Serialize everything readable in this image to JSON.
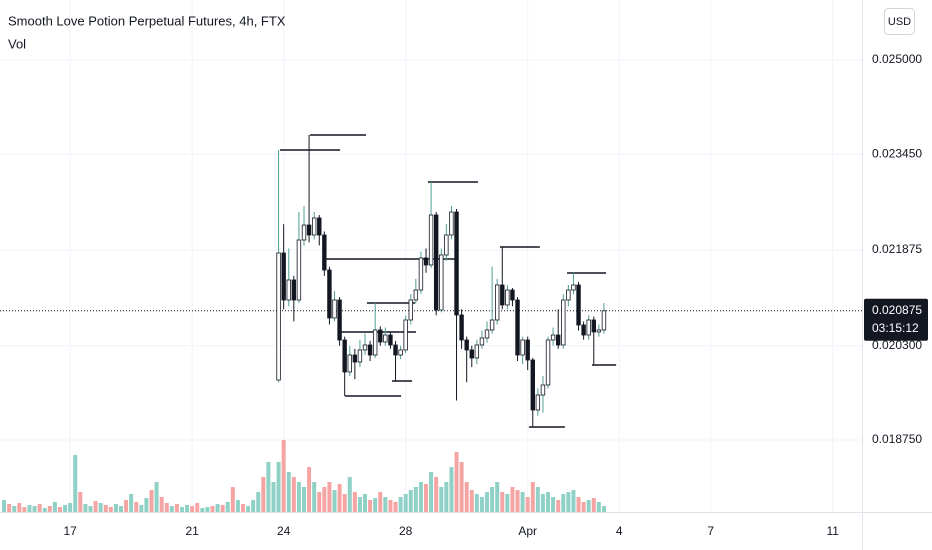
{
  "chart_data": {
    "type": "candlestick",
    "title": "Smooth Love Potion Perpetual Futures, 4h, FTX",
    "volume_label": "Vol",
    "currency": "USD",
    "current_price": 0.020875,
    "countdown": "03:15:12",
    "xlim": [
      14.7,
      42.96
    ],
    "ylim": [
      0.017566,
      0.025987
    ],
    "xticks": [
      17,
      21,
      24,
      28,
      {
        "value": 32,
        "label": "Apr"
      },
      {
        "value": 35,
        "label": "4"
      },
      {
        "value": 38,
        "label": "7"
      },
      {
        "value": 42,
        "label": "11"
      }
    ],
    "yticks": [
      {
        "value": 0.025,
        "label": "0.025000"
      },
      {
        "value": 0.02345,
        "label": "0.023450"
      },
      0.021875,
      {
        "value": 0.0203,
        "label": "0.020300"
      },
      {
        "value": 0.01875,
        "label": "0.018750"
      }
    ],
    "grid": true,
    "up_color": "#4f9e92",
    "down_color": "#131722",
    "x": [
      14.833,
      15,
      15.167,
      15.333,
      15.5,
      15.667,
      15.833,
      16,
      16.167,
      16.333,
      16.5,
      16.667,
      16.833,
      17,
      17.167,
      17.333,
      17.5,
      17.667,
      17.833,
      18,
      18.167,
      18.333,
      18.5,
      18.667,
      18.833,
      19,
      19.167,
      19.333,
      19.5,
      19.667,
      19.833,
      20,
      20.167,
      20.333,
      20.5,
      20.667,
      20.833,
      21,
      21.167,
      21.333,
      21.5,
      21.667,
      21.833,
      22,
      22.167,
      22.333,
      22.5,
      22.667,
      22.833,
      23,
      23.167,
      23.333,
      23.5,
      23.667,
      23.833,
      24,
      24.167,
      24.333,
      24.5,
      24.667,
      24.833,
      25,
      25.167,
      25.333,
      25.5,
      25.667,
      25.833,
      26,
      26.167,
      26.333,
      26.5,
      26.667,
      26.833,
      27,
      27.167,
      27.333,
      27.5,
      27.667,
      27.833,
      28,
      28.167,
      28.333,
      28.5,
      28.667,
      28.833,
      29,
      29.167,
      29.333,
      29.5,
      29.667,
      29.833,
      30,
      30.167,
      30.333,
      30.5,
      30.667,
      30.833,
      31,
      31.167,
      31.333,
      31.5,
      31.667,
      31.833,
      32,
      32.167,
      32.333,
      32.5,
      32.667,
      32.833,
      33,
      33.167,
      33.333,
      33.5,
      33.667,
      33.833,
      34,
      34.167,
      34.333,
      34.5
    ],
    "open": [
      null,
      null,
      null,
      null,
      null,
      null,
      null,
      null,
      null,
      null,
      null,
      null,
      null,
      null,
      null,
      null,
      null,
      null,
      null,
      null,
      null,
      null,
      null,
      null,
      null,
      null,
      null,
      null,
      null,
      null,
      null,
      null,
      null,
      null,
      null,
      null,
      null,
      null,
      null,
      null,
      null,
      null,
      null,
      null,
      null,
      null,
      null,
      null,
      null,
      null,
      null,
      null,
      null,
      null,
      0.019737,
      0.021826,
      0.021053,
      0.021382,
      0.021053,
      0.02204,
      0.022286,
      0.022122,
      0.022402,
      0.022122,
      0.021546,
      0.020757,
      0.021053,
      0.020395,
      0.019869,
      0.020148,
      0.020033,
      0.020231,
      0.020313,
      0.020148,
      0.02056,
      0.020362,
      0.020477,
      0.020313,
      0.020148,
      0.020231,
      0.020724,
      0.021053,
      0.021217,
      0.021744,
      0.021629,
      0.022451,
      0.020888,
      0.021793,
      0.022122,
      0.0225,
      0.020806,
      0.020395,
      0.020231,
      0.020099,
      0.020313,
      0.020428,
      0.02056,
      0.020724,
      0.0213,
      0.020971,
      0.021217,
      0.021053,
      0.020148,
      0.020395,
      0.020066,
      0.019244,
      0.01949,
      0.019655,
      0.020395,
      0.020477,
      0.020313,
      0.021053,
      0.021217,
      0.0213,
      0.020642,
      0.020477,
      0.020724,
      0.020527,
      0.02056
    ],
    "high": [
      null,
      null,
      null,
      null,
      null,
      null,
      null,
      null,
      null,
      null,
      null,
      null,
      null,
      null,
      null,
      null,
      null,
      null,
      null,
      null,
      null,
      null,
      null,
      null,
      null,
      null,
      null,
      null,
      null,
      null,
      null,
      null,
      null,
      null,
      null,
      null,
      null,
      null,
      null,
      null,
      null,
      null,
      null,
      null,
      null,
      null,
      null,
      null,
      null,
      null,
      null,
      null,
      null,
      null,
      0.02352,
      0.0223,
      0.0219,
      0.02145,
      0.0225,
      0.0226,
      0.023767,
      0.0225,
      0.02245,
      0.02218,
      0.0216,
      0.0212,
      0.0211,
      0.02045,
      0.0203,
      0.02025,
      0.0204,
      0.0205,
      0.02038,
      0.021003,
      0.02062,
      0.0206,
      0.02053,
      0.02038,
      0.0203,
      0.0208,
      0.02115,
      0.0214,
      0.02185,
      0.0219,
      0.022994,
      0.0225,
      0.0219,
      0.0223,
      0.0226,
      0.02255,
      0.0209,
      0.02045,
      0.0203,
      0.0204,
      0.02055,
      0.0207,
      0.0216,
      0.0214,
      0.021925,
      0.0213,
      0.02125,
      0.0211,
      0.02045,
      0.02045,
      0.0201,
      0.0196,
      0.0198,
      0.02045,
      0.0206,
      0.0209,
      0.02115,
      0.0213,
      0.021497,
      0.02135,
      0.0207,
      0.0208,
      0.02078,
      0.02065,
      0.021003
    ],
    "low": [
      null,
      null,
      null,
      null,
      null,
      null,
      null,
      null,
      null,
      null,
      null,
      null,
      null,
      null,
      null,
      null,
      null,
      null,
      null,
      null,
      null,
      null,
      null,
      null,
      null,
      null,
      null,
      null,
      null,
      null,
      null,
      null,
      null,
      null,
      null,
      null,
      null,
      null,
      null,
      null,
      null,
      null,
      null,
      null,
      null,
      null,
      null,
      null,
      null,
      null,
      null,
      null,
      null,
      null,
      0.0197,
      0.0209,
      0.02095,
      0.0207,
      0.021,
      0.02195,
      0.022,
      0.02205,
      0.02195,
      0.02145,
      0.02065,
      0.0207,
      0.0203,
      0.019474,
      0.0198,
      0.01975,
      0.01995,
      0.02015,
      0.02005,
      0.0201,
      0.0203,
      0.0203,
      0.02025,
      0.019721,
      0.02008,
      0.02018,
      0.02065,
      0.021,
      0.02115,
      0.0215,
      0.02158,
      0.0208,
      0.02085,
      0.0217,
      0.02205,
      0.0194,
      0.02025,
      0.0197,
      0.01995,
      0.02,
      0.02025,
      0.02035,
      0.0205,
      0.02065,
      0.0209,
      0.0209,
      0.02095,
      0.02005,
      0.02,
      0.0199,
      0.018964,
      0.01915,
      0.0192,
      0.0196,
      0.0203,
      0.02025,
      0.02025,
      0.02095,
      0.02115,
      0.02055,
      0.0204,
      0.0204,
      0.019984,
      0.02045,
      0.0205
    ],
    "close": [
      null,
      null,
      null,
      null,
      null,
      null,
      null,
      null,
      null,
      null,
      null,
      null,
      null,
      null,
      null,
      null,
      null,
      null,
      null,
      null,
      null,
      null,
      null,
      null,
      null,
      null,
      null,
      null,
      null,
      null,
      null,
      null,
      null,
      null,
      null,
      null,
      null,
      null,
      null,
      null,
      null,
      null,
      null,
      null,
      null,
      null,
      null,
      null,
      null,
      null,
      null,
      null,
      null,
      null,
      0.021826,
      0.021053,
      0.021382,
      0.021053,
      0.02204,
      0.022286,
      0.022122,
      0.022402,
      0.022122,
      0.021546,
      0.020757,
      0.021053,
      0.020395,
      0.019869,
      0.020148,
      0.020033,
      0.020231,
      0.020313,
      0.020148,
      0.02056,
      0.020362,
      0.020477,
      0.020313,
      0.020148,
      0.020231,
      0.020724,
      0.021053,
      0.021217,
      0.021744,
      0.021629,
      0.022451,
      0.020888,
      0.021793,
      0.022122,
      0.0225,
      0.020806,
      0.020395,
      0.020231,
      0.020099,
      0.020313,
      0.020428,
      0.02056,
      0.020724,
      0.0213,
      0.020971,
      0.021217,
      0.021053,
      0.020148,
      0.020395,
      0.020066,
      0.019244,
      0.01949,
      0.019655,
      0.020395,
      0.020477,
      0.020313,
      0.021053,
      0.021217,
      0.0213,
      0.020642,
      0.020477,
      0.020724,
      0.020527,
      0.02056,
      0.020875
    ],
    "volume": [
      12,
      8,
      6,
      9,
      5,
      7,
      6,
      8,
      4,
      6,
      10,
      5,
      7,
      9,
      57,
      20,
      8,
      6,
      11,
      9,
      7,
      5,
      8,
      6,
      12,
      18,
      10,
      7,
      14,
      22,
      30,
      15,
      9,
      6,
      8,
      5,
      7,
      6,
      9,
      4,
      5,
      6,
      8,
      7,
      10,
      25,
      12,
      8,
      6,
      12,
      20,
      35,
      50,
      30,
      50,
      72,
      40,
      35,
      30,
      25,
      45,
      30,
      20,
      25,
      30,
      22,
      28,
      18,
      35,
      20,
      15,
      18,
      12,
      14,
      20,
      15,
      12,
      10,
      15,
      18,
      22,
      25,
      30,
      28,
      40,
      35,
      25,
      30,
      45,
      60,
      50,
      30,
      22,
      18,
      15,
      20,
      25,
      30,
      20,
      18,
      25,
      22,
      20,
      15,
      30,
      25,
      18,
      20,
      15,
      12,
      18,
      20,
      22,
      15,
      10,
      12,
      14,
      10,
      6
    ],
    "volume_colors": [
      "#8fd1c6",
      "#f5a4a4",
      "#8fd1c6",
      "#f5a4a4",
      "#f5a4a4",
      "#8fd1c6",
      "#8fd1c6",
      "#f5a4a4",
      "#8fd1c6",
      "#f5a4a4",
      "#8fd1c6",
      "#f5a4a4",
      "#8fd1c6",
      "#8fd1c6",
      "#8fd1c6",
      "#f5a4a4",
      "#8fd1c6",
      "#8fd1c6",
      "#f5a4a4",
      "#8fd1c6",
      "#f5a4a4",
      "#f5a4a4",
      "#8fd1c6",
      "#8fd1c6",
      "#f5a4a4",
      "#8fd1c6",
      "#f5a4a4",
      "#8fd1c6",
      "#8fd1c6",
      "#f5a4a4",
      "#8fd1c6",
      "#f5a4a4",
      "#f5a4a4",
      "#8fd1c6",
      "#f5a4a4",
      "#8fd1c6",
      "#8fd1c6",
      "#f5a4a4",
      "#f5a4a4",
      "#8fd1c6",
      "#8fd1c6",
      "#f5a4a4",
      "#8fd1c6",
      "#f5a4a4",
      "#8fd1c6",
      "#f5a4a4",
      "#8fd1c6",
      "#f5a4a4",
      "#8fd1c6",
      "#8fd1c6",
      "#8fd1c6",
      "#f5a4a4",
      "#8fd1c6",
      "#8fd1c6",
      "#8fd1c6",
      "#f5a4a4",
      "#8fd1c6",
      "#f5a4a4",
      "#8fd1c6",
      "#8fd1c6",
      "#f5a4a4",
      "#8fd1c6",
      "#f5a4a4",
      "#f5a4a4",
      "#f5a4a4",
      "#8fd1c6",
      "#f5a4a4",
      "#f5a4a4",
      "#8fd1c6",
      "#f5a4a4",
      "#8fd1c6",
      "#8fd1c6",
      "#f5a4a4",
      "#8fd1c6",
      "#f5a4a4",
      "#8fd1c6",
      "#f5a4a4",
      "#f5a4a4",
      "#8fd1c6",
      "#8fd1c6",
      "#8fd1c6",
      "#8fd1c6",
      "#8fd1c6",
      "#f5a4a4",
      "#8fd1c6",
      "#f5a4a4",
      "#8fd1c6",
      "#8fd1c6",
      "#8fd1c6",
      "#f5a4a4",
      "#f5a4a4",
      "#f5a4a4",
      "#f5a4a4",
      "#8fd1c6",
      "#8fd1c6",
      "#8fd1c6",
      "#8fd1c6",
      "#8fd1c6",
      "#f5a4a4",
      "#8fd1c6",
      "#f5a4a4",
      "#f5a4a4",
      "#8fd1c6",
      "#f5a4a4",
      "#f5a4a4",
      "#8fd1c6",
      "#8fd1c6",
      "#8fd1c6",
      "#8fd1c6",
      "#f5a4a4",
      "#8fd1c6",
      "#8fd1c6",
      "#8fd1c6",
      "#f5a4a4",
      "#f5a4a4",
      "#8fd1c6",
      "#f5a4a4",
      "#8fd1c6",
      "#8fd1c6"
    ],
    "levels": [
      {
        "price": 0.023767,
        "x": [
          24.864,
          26.7
        ]
      },
      {
        "price": 0.02352,
        "x": [
          23.88,
          25.85
        ]
      },
      {
        "price": 0.022994,
        "x": [
          28.73,
          30.37
        ]
      },
      {
        "price": 0.021925,
        "x": [
          31.09,
          32.4
        ]
      },
      {
        "price": 0.021727,
        "x": [
          25.36,
          29.68
        ]
      },
      {
        "price": 0.021497,
        "x": [
          33.29,
          34.57
        ]
      },
      {
        "price": 0.021003,
        "x": [
          26.73,
          28.31
        ]
      },
      {
        "price": 0.020527,
        "x": [
          25.88,
          28.34
        ]
      },
      {
        "price": 0.019984,
        "x": [
          34.11,
          34.9
        ]
      },
      {
        "price": 0.019721,
        "x": [
          27.55,
          28.21
        ]
      },
      {
        "price": 0.019474,
        "x": [
          26.01,
          27.85
        ]
      },
      {
        "price": 0.018964,
        "x": [
          32.04,
          33.22
        ]
      }
    ]
  }
}
